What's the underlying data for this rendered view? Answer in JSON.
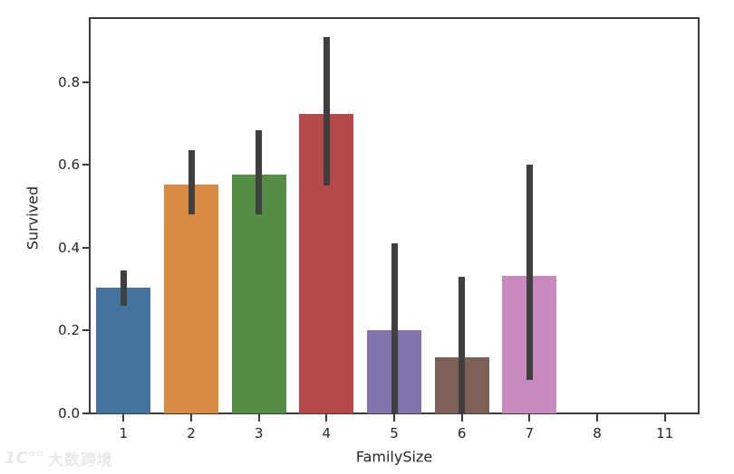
{
  "watermark": {
    "logo_text": "1C°°",
    "text": "大数跨境"
  },
  "chart_data": {
    "type": "bar",
    "title": "",
    "xlabel": "FamilySize",
    "ylabel": "Survived",
    "categories": [
      "1",
      "2",
      "3",
      "4",
      "5",
      "6",
      "7",
      "8",
      "11"
    ],
    "values": [
      0.303,
      0.553,
      0.578,
      0.724,
      0.2,
      0.136,
      0.333,
      0.0,
      0.0
    ],
    "error_low": [
      0.26,
      0.48,
      0.48,
      0.55,
      0.0,
      0.0,
      0.08,
      null,
      null
    ],
    "error_high": [
      0.345,
      0.635,
      0.685,
      0.91,
      0.41,
      0.33,
      0.6,
      null,
      null
    ],
    "bar_colors": [
      "#4573a0",
      "#d98a42",
      "#538d46",
      "#b4484a",
      "#8273ad",
      "#7d6057",
      "#c88abd",
      "#808080",
      "#c2b16b"
    ],
    "y_ticks": [
      0.0,
      0.2,
      0.4,
      0.6,
      0.8
    ],
    "y_tick_labels": [
      "0.0",
      "0.2",
      "0.4",
      "0.6",
      "0.8"
    ],
    "ylim": [
      0.0,
      0.955
    ],
    "grid": false,
    "legend": null,
    "error_color": "#3f3f3f",
    "spine_color": "#3b3b3b",
    "tick_color": "#262626"
  }
}
